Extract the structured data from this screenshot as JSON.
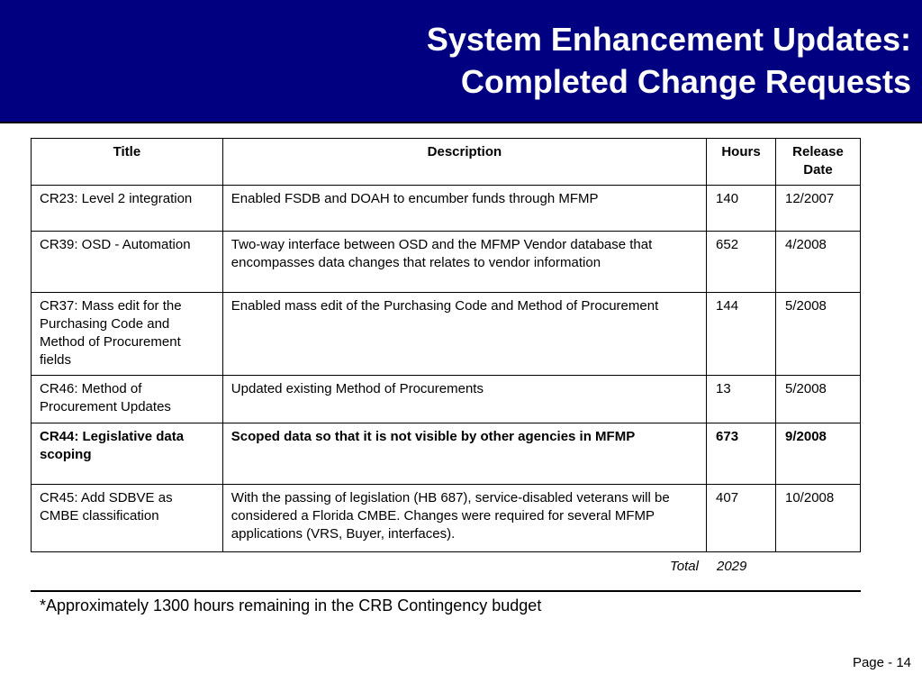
{
  "slide": {
    "title_line1": "System Enhancement Updates:",
    "title_line2": "Completed Change Requests"
  },
  "table": {
    "headers": {
      "title": "Title",
      "description": "Description",
      "hours": "Hours",
      "release_date": "Release Date"
    },
    "rows": [
      {
        "title": "CR23: Level 2 integration",
        "description": "Enabled FSDB and DOAH to encumber funds through MFMP",
        "hours": "140",
        "release_date": "12/2007"
      },
      {
        "title": "CR39: OSD - Automation",
        "description": "Two-way interface between OSD and the MFMP Vendor database that encompasses data changes that relates to vendor information",
        "hours": "652",
        "release_date": "4/2008"
      },
      {
        "title": "CR37: Mass edit for the Purchasing Code and Method of Procurement fields",
        "description": "Enabled mass edit of the Purchasing Code and Method of Procurement",
        "hours": "144",
        "release_date": "5/2008"
      },
      {
        "title": "CR46: Method of Procurement Updates",
        "description": "Updated existing Method of Procurements",
        "hours": "13",
        "release_date": "5/2008"
      },
      {
        "title": "CR44: Legislative data scoping",
        "description": "Scoped data so that it is not visible by other agencies in MFMP",
        "hours": "673",
        "release_date": "9/2008"
      },
      {
        "title": "CR45: Add SDBVE as CMBE classification",
        "description": "With the passing of legislation (HB 687), service-disabled veterans will be considered a Florida CMBE.  Changes were  required for several MFMP applications (VRS, Buyer, interfaces).",
        "hours": "407",
        "release_date": "10/2008"
      }
    ],
    "total_label": "Total",
    "total_value": "2029"
  },
  "footnote": "*Approximately 1300 hours remaining in the CRB Contingency budget",
  "page_label": "Page - 14",
  "colors": {
    "header_bg": "#000080",
    "title_text": "#ffffff"
  }
}
